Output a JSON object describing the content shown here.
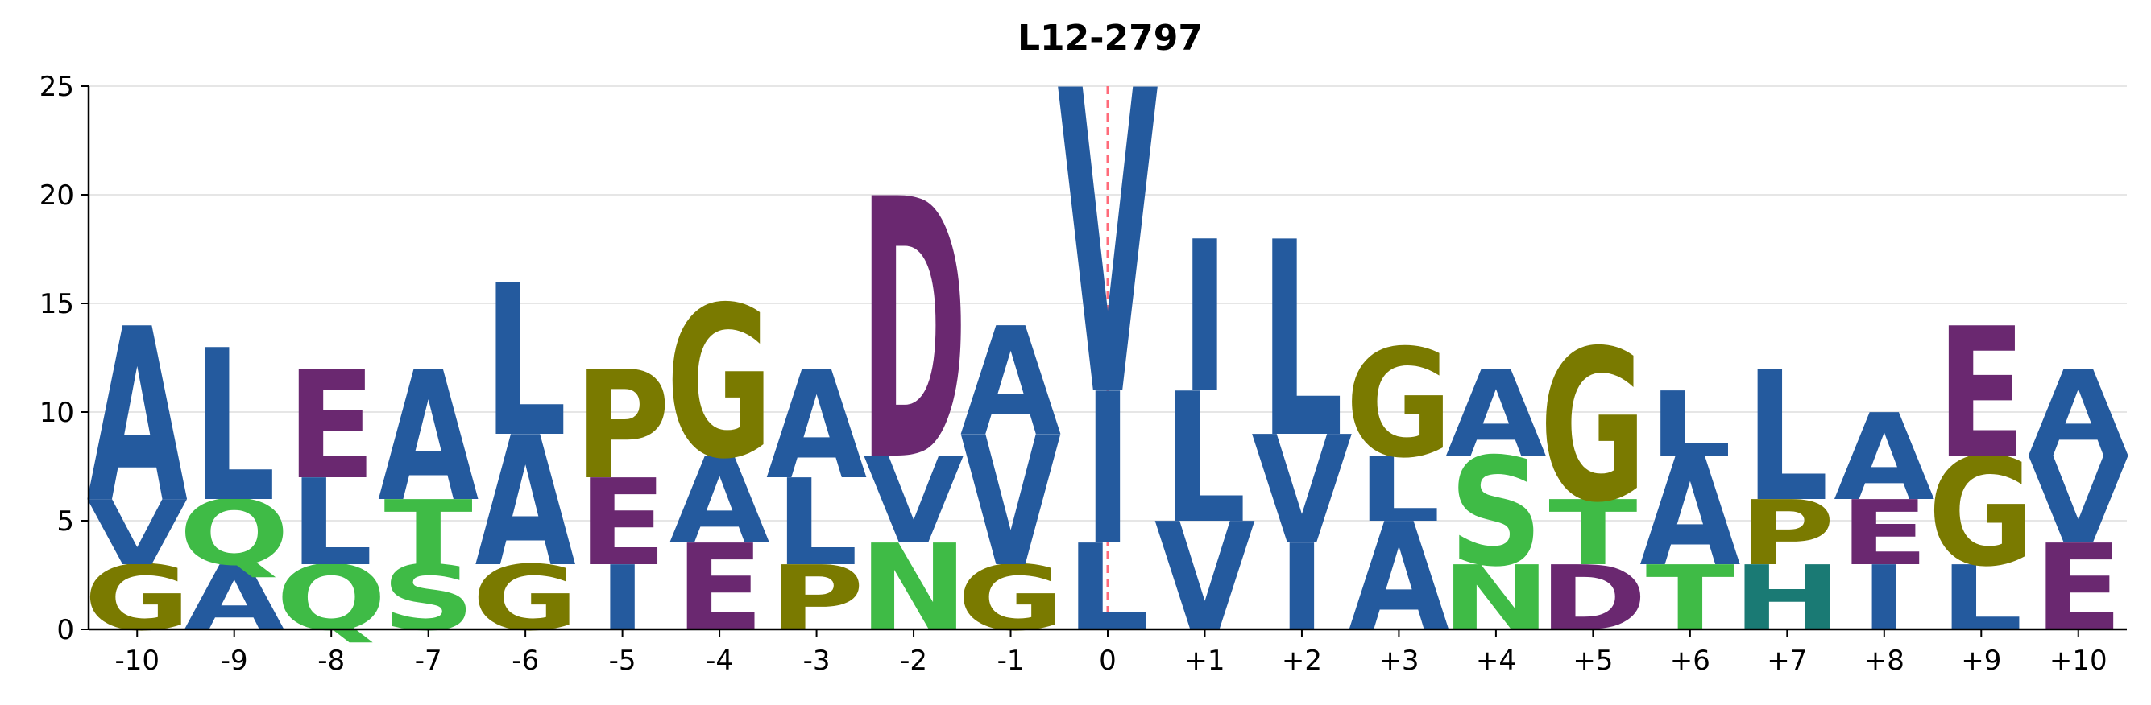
{
  "chart_data": {
    "type": "sequence-logo",
    "title": "L12-2797",
    "ylim": [
      0,
      25
    ],
    "yticks": [
      0,
      5,
      10,
      15,
      20,
      25
    ],
    "grid": "horizontal",
    "center_marker": "0",
    "positions": [
      "-10",
      "-9",
      "-8",
      "-7",
      "-6",
      "-5",
      "-4",
      "-3",
      "-2",
      "-1",
      "0",
      "+1",
      "+2",
      "+3",
      "+4",
      "+5",
      "+6",
      "+7",
      "+8",
      "+9",
      "+10"
    ],
    "colors": {
      "hydrophobic": "#245a9e",
      "polar": "#3fbb46",
      "acidic": "#6a2870",
      "special": "#7a7a00",
      "basic": "#1a7a74"
    },
    "residue_colors": {
      "A": "#245a9e",
      "V": "#245a9e",
      "L": "#245a9e",
      "I": "#245a9e",
      "Q": "#3fbb46",
      "S": "#3fbb46",
      "T": "#3fbb46",
      "N": "#3fbb46",
      "E": "#6a2870",
      "D": "#6a2870",
      "G": "#7a7a00",
      "P": "#7a7a00",
      "H": "#1a7a74"
    },
    "stacks": [
      [
        {
          "aa": "G",
          "h": 3
        },
        {
          "aa": "V",
          "h": 3
        },
        {
          "aa": "A",
          "h": 8
        }
      ],
      [
        {
          "aa": "A",
          "h": 3
        },
        {
          "aa": "Q",
          "h": 3
        },
        {
          "aa": "L",
          "h": 7
        }
      ],
      [
        {
          "aa": "Q",
          "h": 3
        },
        {
          "aa": "L",
          "h": 4
        },
        {
          "aa": "E",
          "h": 5
        }
      ],
      [
        {
          "aa": "S",
          "h": 3
        },
        {
          "aa": "T",
          "h": 3
        },
        {
          "aa": "A",
          "h": 6
        }
      ],
      [
        {
          "aa": "G",
          "h": 3
        },
        {
          "aa": "A",
          "h": 6
        },
        {
          "aa": "L",
          "h": 7
        }
      ],
      [
        {
          "aa": "I",
          "h": 3
        },
        {
          "aa": "E",
          "h": 4
        },
        {
          "aa": "P",
          "h": 5
        }
      ],
      [
        {
          "aa": "E",
          "h": 4
        },
        {
          "aa": "A",
          "h": 4
        },
        {
          "aa": "G",
          "h": 7
        }
      ],
      [
        {
          "aa": "P",
          "h": 3
        },
        {
          "aa": "L",
          "h": 4
        },
        {
          "aa": "A",
          "h": 5
        }
      ],
      [
        {
          "aa": "N",
          "h": 4
        },
        {
          "aa": "V",
          "h": 4
        },
        {
          "aa": "D",
          "h": 12
        }
      ],
      [
        {
          "aa": "G",
          "h": 3
        },
        {
          "aa": "V",
          "h": 6
        },
        {
          "aa": "A",
          "h": 5
        }
      ],
      [
        {
          "aa": "L",
          "h": 4
        },
        {
          "aa": "I",
          "h": 7
        },
        {
          "aa": "V",
          "h": 14
        }
      ],
      [
        {
          "aa": "V",
          "h": 5
        },
        {
          "aa": "L",
          "h": 6
        },
        {
          "aa": "I",
          "h": 7
        }
      ],
      [
        {
          "aa": "I",
          "h": 4
        },
        {
          "aa": "V",
          "h": 5
        },
        {
          "aa": "L",
          "h": 9
        }
      ],
      [
        {
          "aa": "A",
          "h": 5
        },
        {
          "aa": "L",
          "h": 3
        },
        {
          "aa": "G",
          "h": 5
        }
      ],
      [
        {
          "aa": "N",
          "h": 3
        },
        {
          "aa": "S",
          "h": 5
        },
        {
          "aa": "A",
          "h": 4
        }
      ],
      [
        {
          "aa": "D",
          "h": 3
        },
        {
          "aa": "T",
          "h": 3
        },
        {
          "aa": "G",
          "h": 7
        }
      ],
      [
        {
          "aa": "T",
          "h": 3
        },
        {
          "aa": "A",
          "h": 5
        },
        {
          "aa": "L",
          "h": 3
        }
      ],
      [
        {
          "aa": "H",
          "h": 3
        },
        {
          "aa": "P",
          "h": 3
        },
        {
          "aa": "L",
          "h": 6
        }
      ],
      [
        {
          "aa": "I",
          "h": 3
        },
        {
          "aa": "E",
          "h": 3
        },
        {
          "aa": "A",
          "h": 4
        }
      ],
      [
        {
          "aa": "L",
          "h": 3
        },
        {
          "aa": "G",
          "h": 5
        },
        {
          "aa": "E",
          "h": 6
        }
      ],
      [
        {
          "aa": "E",
          "h": 4
        },
        {
          "aa": "V",
          "h": 4
        },
        {
          "aa": "A",
          "h": 4
        }
      ]
    ]
  }
}
